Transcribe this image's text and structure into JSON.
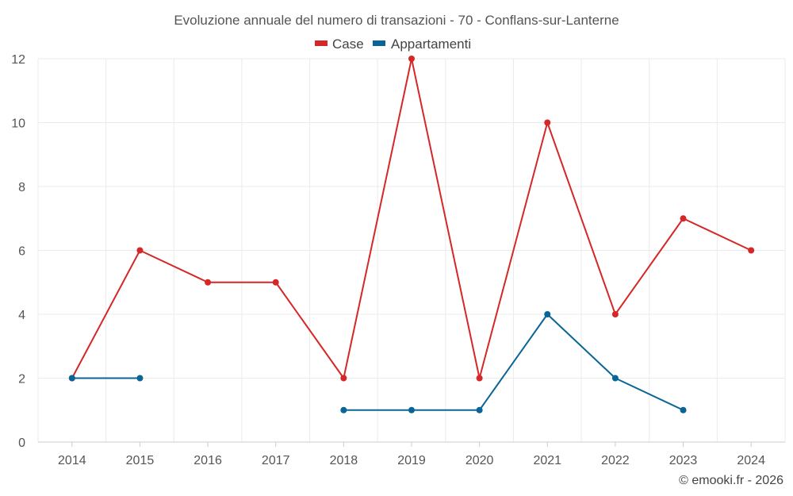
{
  "chart_data": {
    "type": "line",
    "title": "Evoluzione annuale del numero di transazioni - 70 - Conflans-sur-Lanterne",
    "categories": [
      "2014",
      "2015",
      "2016",
      "2017",
      "2018",
      "2019",
      "2020",
      "2021",
      "2022",
      "2023",
      "2024"
    ],
    "series": [
      {
        "name": "Case",
        "color": "#d62728",
        "values": [
          2,
          6,
          5,
          5,
          2,
          12,
          2,
          10,
          4,
          7,
          6
        ]
      },
      {
        "name": "Appartamenti",
        "color": "#0a6596",
        "values": [
          2,
          2,
          null,
          null,
          1,
          1,
          1,
          4,
          2,
          1,
          null
        ]
      }
    ],
    "y_ticks": [
      "0",
      "2",
      "4",
      "6",
      "8",
      "10",
      "12"
    ],
    "ylim": [
      0,
      12
    ],
    "xlabel": "",
    "ylabel": "",
    "legend_position": "top-center",
    "grid": true
  },
  "credit": "© emooki.fr - 2026"
}
